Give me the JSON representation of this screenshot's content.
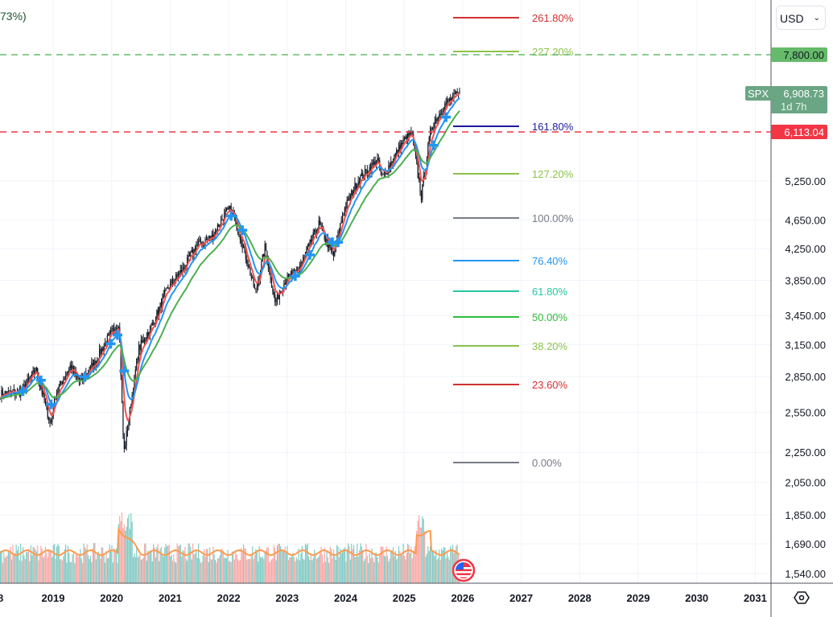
{
  "header": {
    "change_fragment": "73%)"
  },
  "currency": {
    "label": "USD",
    "icon": "chevron-down-icon"
  },
  "settings_icon": "hexagon-settings-icon",
  "symbol_badge": {
    "symbol": "SPX",
    "price": "6,908.73",
    "countdown": "1d 7h",
    "color": "#6aa584"
  },
  "alerts": [
    {
      "label": "7,800.00",
      "value": 7800,
      "color": "#66bb6a"
    },
    {
      "label": "6,113.04",
      "value": 6113.04,
      "color": "#f23645"
    }
  ],
  "colors": {
    "candle": "#131722",
    "ma_fast": "#f05454",
    "ma_mid": "#2196f3",
    "ma_slow": "#4caf50",
    "vol_up": "#80cbc4",
    "vol_down": "#f7a9a7",
    "vol_ma": "#ff9a4d"
  },
  "chart_data": {
    "type": "candlestick",
    "scale": "log",
    "grid": true,
    "x_ticks": [
      "8",
      "2019",
      "2020",
      "2021",
      "2022",
      "2023",
      "2024",
      "2025",
      "2026",
      "2027",
      "2028",
      "2029",
      "2030",
      "2031"
    ],
    "y_ticks": [
      "5,250.00",
      "4,650.00",
      "4,250.00",
      "3,850.00",
      "3,450.00",
      "3,150.00",
      "2,850.00",
      "2,550.00",
      "2,250.00",
      "2,050.00",
      "1,850.00",
      "1,690.00",
      "1,540.00"
    ],
    "y_tick_values": [
      5250,
      4650,
      4250,
      3850,
      3450,
      3150,
      2850,
      2550,
      2250,
      2050,
      1850,
      1690,
      1540
    ],
    "price_path": [
      [
        "2018-02",
        2700
      ],
      [
        "2018-06",
        2720
      ],
      [
        "2018-09",
        2914
      ],
      [
        "2018-12",
        2450
      ],
      [
        "2019-01",
        2700
      ],
      [
        "2019-04",
        2945
      ],
      [
        "2019-06",
        2800
      ],
      [
        "2019-09",
        2977
      ],
      [
        "2019-12",
        3231
      ],
      [
        "2020-02",
        3380
      ],
      [
        "2020-03",
        2240
      ],
      [
        "2020-06",
        3100
      ],
      [
        "2020-09",
        3363
      ],
      [
        "2020-12",
        3756
      ],
      [
        "2021-03",
        3973
      ],
      [
        "2021-06",
        4298
      ],
      [
        "2021-09",
        4400
      ],
      [
        "2021-12",
        4766
      ],
      [
        "2022-01",
        4800
      ],
      [
        "2022-03",
        4400
      ],
      [
        "2022-06",
        3700
      ],
      [
        "2022-08",
        4280
      ],
      [
        "2022-10",
        3590
      ],
      [
        "2022-12",
        3840
      ],
      [
        "2023-03",
        4000
      ],
      [
        "2023-07",
        4589
      ],
      [
        "2023-10",
        4150
      ],
      [
        "2023-12",
        4770
      ],
      [
        "2024-03",
        5254
      ],
      [
        "2024-07",
        5600
      ],
      [
        "2024-08",
        5300
      ],
      [
        "2024-12",
        5900
      ],
      [
        "2025-02",
        6100
      ],
      [
        "2025-04",
        5000
      ],
      [
        "2025-06",
        6205
      ],
      [
        "2025-09",
        6688
      ],
      [
        "2025-12",
        6908.73
      ]
    ],
    "fib_levels": [
      {
        "label": "261.80%",
        "ratio": 2.618,
        "color": "#d32f2f",
        "value": 8190
      },
      {
        "label": "227.20%",
        "ratio": 2.272,
        "color": "#8bc34a",
        "value": 7850
      },
      {
        "label": "161.80%",
        "ratio": 1.618,
        "color": "#1a1a9e",
        "value": 6350
      },
      {
        "label": "127.20%",
        "ratio": 1.272,
        "color": "#8bc34a",
        "value": 5520
      },
      {
        "label": "100.00%",
        "ratio": 1.0,
        "color": "#787b86",
        "value": 4680
      },
      {
        "label": "76.40%",
        "ratio": 0.764,
        "color": "#2196f3",
        "value": 4080
      },
      {
        "label": "61.80%",
        "ratio": 0.618,
        "color": "#26c6a0",
        "value": 3745
      },
      {
        "label": "50.00%",
        "ratio": 0.5,
        "color": "#2ebd3b",
        "value": 3450
      },
      {
        "label": "38.20%",
        "ratio": 0.382,
        "color": "#8bc34a",
        "value": 3170
      },
      {
        "label": "23.60%",
        "ratio": 0.236,
        "color": "#d32f2f",
        "value": 2820
      },
      {
        "label": "0.00%",
        "ratio": 0.0,
        "color": "#787b86",
        "value": 2190
      }
    ]
  }
}
